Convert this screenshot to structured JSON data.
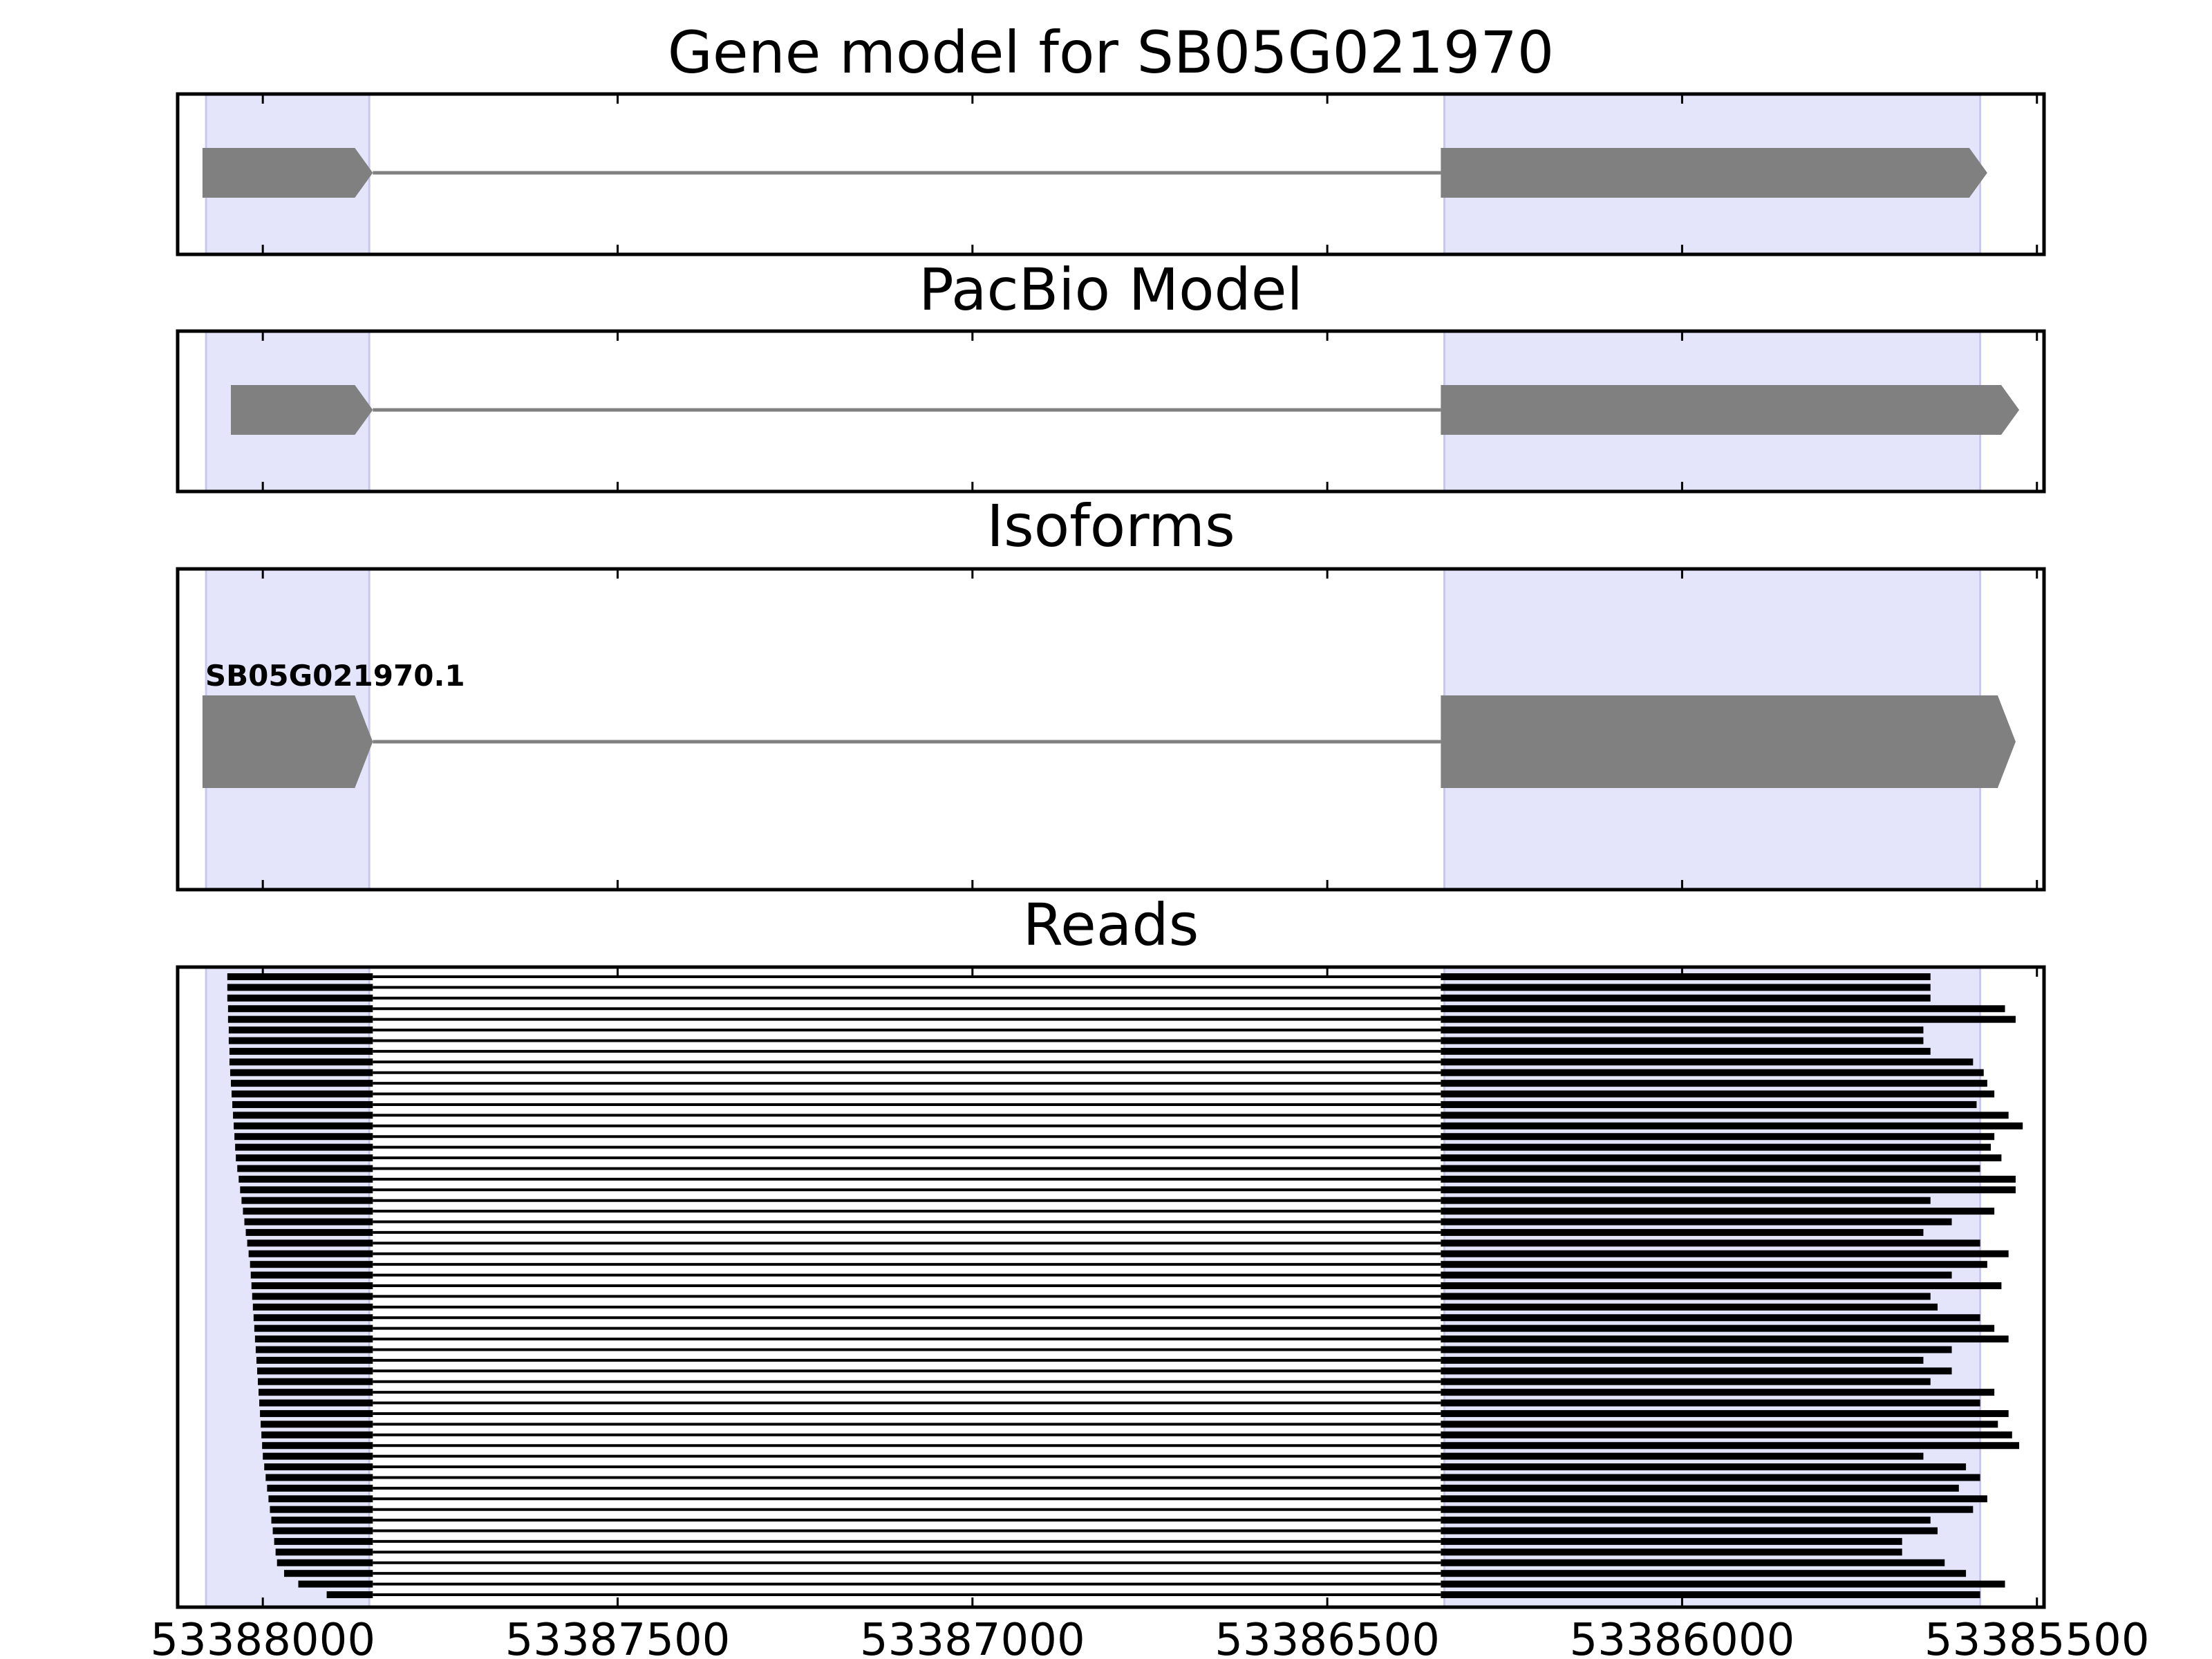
{
  "chart_data": {
    "type": "gene-model",
    "x_reversed": true,
    "xlim": [
      53388120,
      53385490
    ],
    "xticks": [
      53388000,
      53387500,
      53387000,
      53386500,
      53386000,
      53385500
    ],
    "xtick_labels": [
      "53388000",
      "53387500",
      "53387000",
      "53386500",
      "53386000",
      "53385500"
    ],
    "highlight_regions": [
      {
        "start": 53388080,
        "end": 53387850
      },
      {
        "start": 53386335,
        "end": 53385580
      }
    ],
    "panels": [
      {
        "id": "gene-model",
        "title": "Gene model for SB05G021970",
        "features": [
          {
            "exons": [
              [
                53388085,
                53387845
              ],
              [
                53386340,
                53385570
              ]
            ]
          }
        ]
      },
      {
        "id": "pacbio-model",
        "title": "PacBio Model",
        "features": [
          {
            "exons": [
              [
                53388045,
                53387845
              ],
              [
                53386340,
                53385525
              ]
            ]
          }
        ]
      },
      {
        "id": "isoforms",
        "title": "Isoforms",
        "features": [
          {
            "label": "SB05G021970.1",
            "exons": [
              [
                53388085,
                53387845
              ],
              [
                53386340,
                53385530
              ]
            ]
          }
        ]
      },
      {
        "id": "reads",
        "title": "Reads",
        "read_count": 59,
        "read_starts": [
          53388050,
          53388050,
          53388050,
          53388049,
          53388049,
          53388048,
          53388048,
          53388047,
          53388047,
          53388046,
          53388045,
          53388044,
          53388043,
          53388042,
          53388041,
          53388040,
          53388039,
          53388038,
          53388036,
          53388034,
          53388032,
          53388030,
          53388028,
          53388026,
          53388024,
          53388022,
          53388020,
          53388018,
          53388017,
          53388016,
          53388015,
          53388014,
          53388013,
          53388012,
          53388011,
          53388010,
          53388009,
          53388008,
          53388007,
          53388006,
          53388005,
          53388004,
          53388003,
          53388002,
          53388001,
          53388000,
          53387998,
          53387996,
          53387994,
          53387992,
          53387990,
          53387988,
          53387986,
          53387984,
          53387982,
          53387980,
          53387970,
          53387950,
          53387910
        ],
        "read_ends": [
          53385650,
          53385650,
          53385650,
          53385545,
          53385530,
          53385660,
          53385660,
          53385650,
          53385590,
          53385575,
          53385570,
          53385560,
          53385585,
          53385540,
          53385520,
          53385560,
          53385565,
          53385550,
          53385580,
          53385530,
          53385530,
          53385650,
          53385560,
          53385620,
          53385660,
          53385580,
          53385540,
          53385570,
          53385620,
          53385550,
          53385650,
          53385640,
          53385580,
          53385560,
          53385540,
          53385620,
          53385660,
          53385620,
          53385650,
          53385560,
          53385580,
          53385540,
          53385555,
          53385535,
          53385525,
          53385660,
          53385600,
          53385580,
          53385610,
          53385570,
          53385590,
          53385650,
          53385640,
          53385690,
          53385690,
          53385630,
          53385600,
          53385545,
          53385580
        ]
      }
    ]
  }
}
